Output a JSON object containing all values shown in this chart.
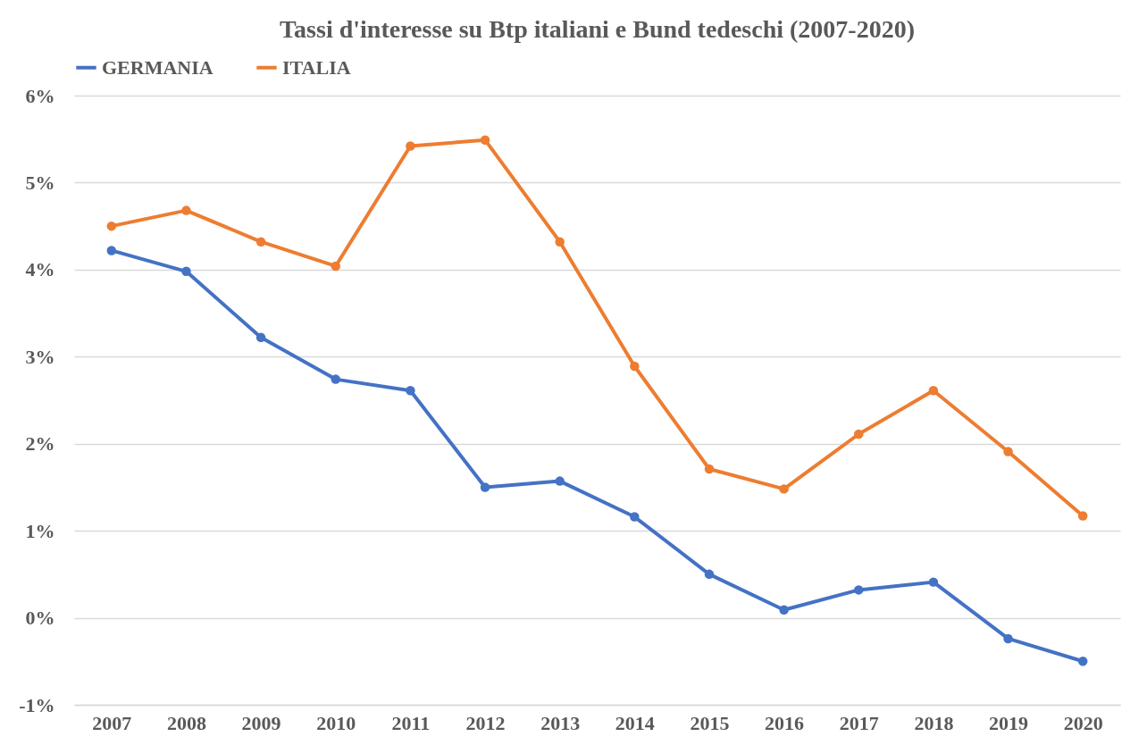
{
  "chart_data": {
    "type": "line",
    "title": "Tassi d'interesse su Btp italiani e Bund tedeschi (2007-2020)",
    "categories": [
      "2007",
      "2008",
      "2009",
      "2010",
      "2011",
      "2012",
      "2013",
      "2014",
      "2015",
      "2016",
      "2017",
      "2018",
      "2019",
      "2020"
    ],
    "series": [
      {
        "name": "GERMANIA",
        "color": "#4472c4",
        "values": [
          4.22,
          3.98,
          3.22,
          2.74,
          2.61,
          1.5,
          1.57,
          1.16,
          0.5,
          0.09,
          0.32,
          0.41,
          -0.24,
          -0.5
        ]
      },
      {
        "name": "ITALIA",
        "color": "#ed7d31",
        "values": [
          4.5,
          4.68,
          4.32,
          4.04,
          5.42,
          5.49,
          4.32,
          2.89,
          1.71,
          1.48,
          2.11,
          2.61,
          1.91,
          1.17
        ]
      }
    ],
    "ylim": [
      -1,
      6
    ],
    "yticks": [
      {
        "value": -1,
        "label": "-1%"
      },
      {
        "value": 0,
        "label": "0%"
      },
      {
        "value": 1,
        "label": "1%"
      },
      {
        "value": 2,
        "label": "2%"
      },
      {
        "value": 3,
        "label": "3%"
      },
      {
        "value": 4,
        "label": "4%"
      },
      {
        "value": 5,
        "label": "5%"
      },
      {
        "value": 6,
        "label": "6%"
      }
    ],
    "grid": "y",
    "legend": "top",
    "marker": "circle",
    "line_style": "solid"
  }
}
